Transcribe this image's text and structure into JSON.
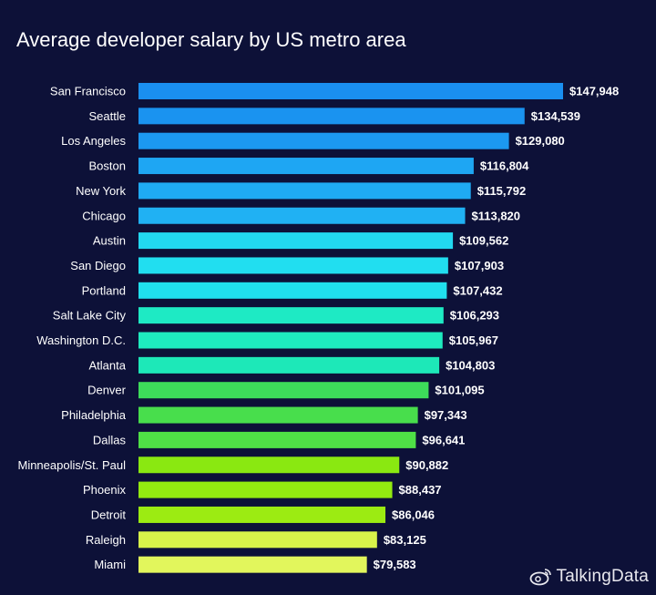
{
  "chart_data": {
    "type": "bar",
    "orientation": "horizontal",
    "title": "Average developer salary by US metro area",
    "xlabel": "",
    "ylabel": "",
    "categories": [
      "San Francisco",
      "Seattle",
      "Los Angeles",
      "Boston",
      "New York",
      "Chicago",
      "Austin",
      "San Diego",
      "Portland",
      "Salt Lake City",
      "Washington D.C.",
      "Atlanta",
      "Denver",
      "Philadelphia",
      "Dallas",
      "Minneapolis/St. Paul",
      "Phoenix",
      "Detroit",
      "Raleigh",
      "Miami"
    ],
    "values": [
      147948,
      134539,
      129080,
      116804,
      115792,
      113820,
      109562,
      107903,
      107432,
      106293,
      105967,
      104803,
      101095,
      97343,
      96641,
      90882,
      88437,
      86046,
      83125,
      79583
    ],
    "value_labels": [
      "$147,948",
      "$134,539",
      "$129,080",
      "$116,804",
      "$115,792",
      "$113,820",
      "$109,562",
      "$107,903",
      "$107,432",
      "$106,293",
      "$105,967",
      "$104,803",
      "$101,095",
      "$97,343",
      "$96,641",
      "$90,882",
      "$88,437",
      "$86,046",
      "$83,125",
      "$79,583"
    ],
    "bar_colors": [
      "#1a8ff0",
      "#1a93f0",
      "#1c99f1",
      "#1ea6f3",
      "#1faaf3",
      "#20b1f3",
      "#22d8f0",
      "#21def0",
      "#20e0ee",
      "#1eeac4",
      "#1eebbf",
      "#1de8b8",
      "#3ddc5a",
      "#48de4c",
      "#4fe046",
      "#8ae811",
      "#93ea10",
      "#9ceb12",
      "#d8f34a",
      "#e2f65c"
    ],
    "xlim": [
      0,
      147948
    ],
    "grid": false,
    "legend": "none",
    "background": "#0d1138"
  },
  "watermark": {
    "text": "TalkingData",
    "icon": "weibo-icon"
  }
}
